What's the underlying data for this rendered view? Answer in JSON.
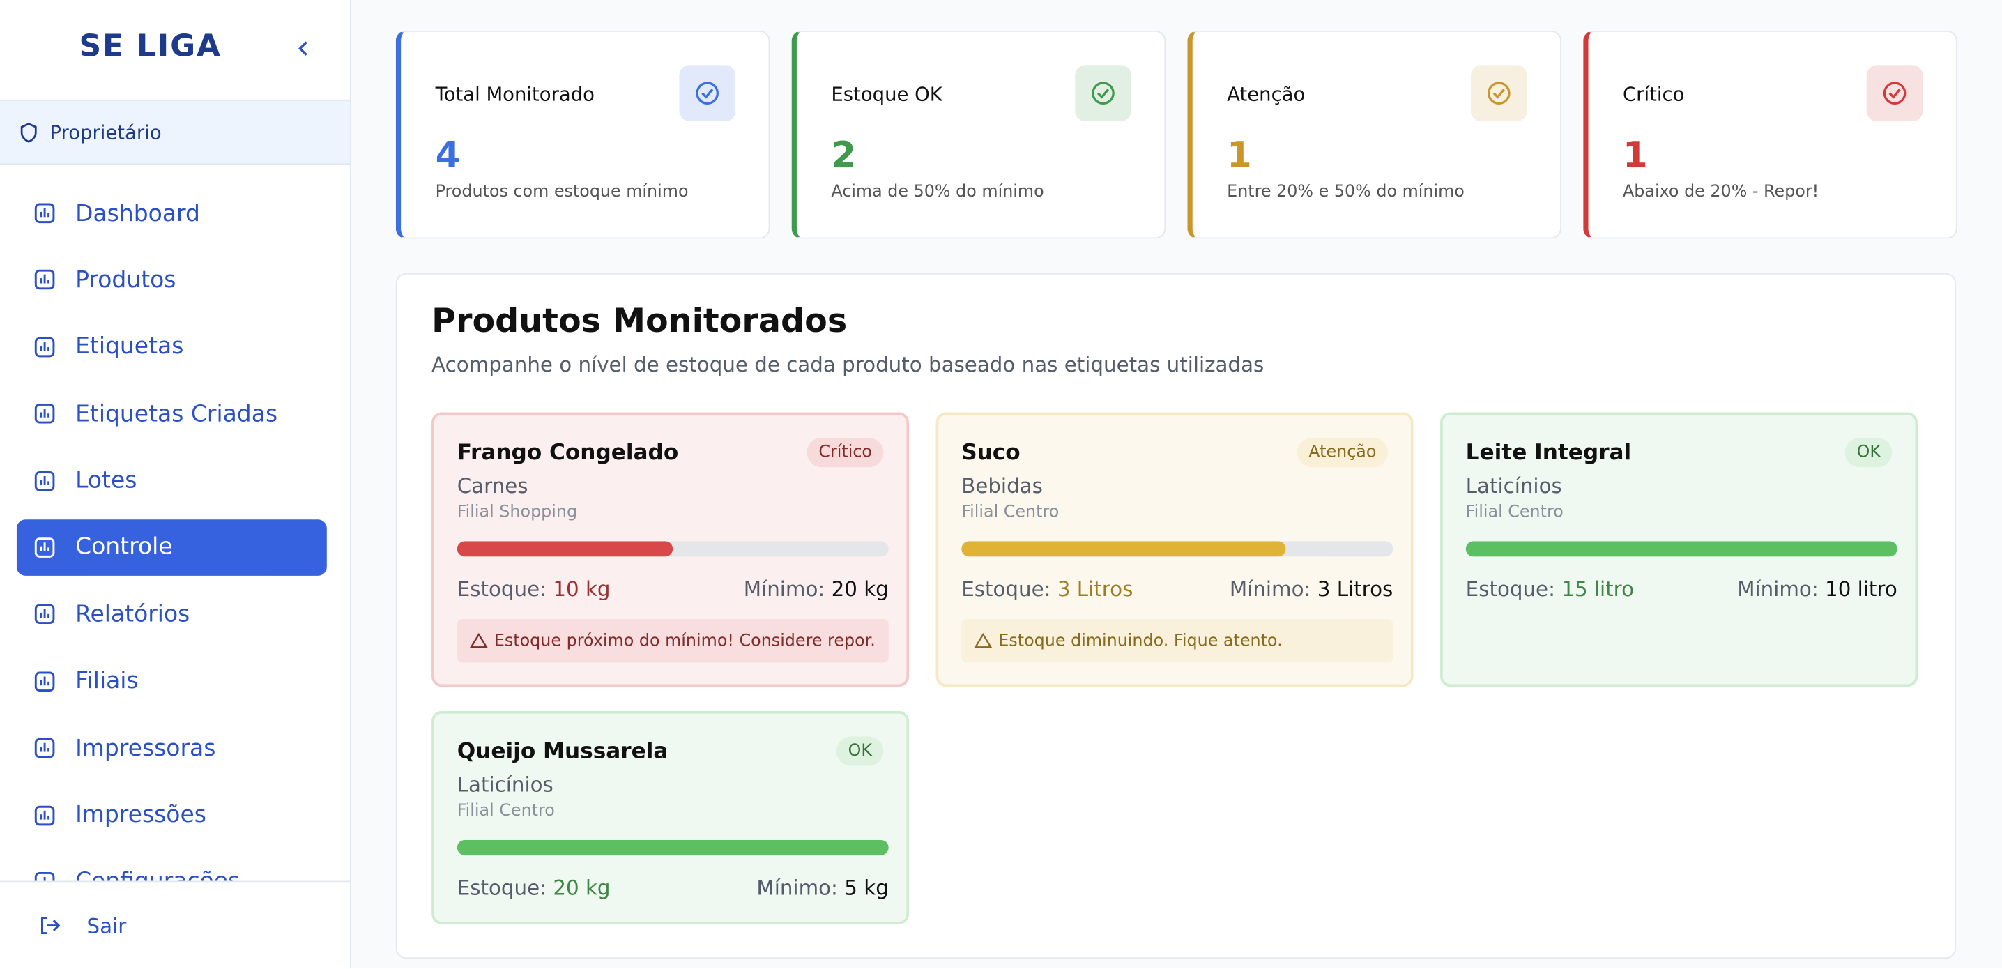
{
  "sidebar": {
    "brand": "SE LIGA",
    "role": "Proprietário",
    "nav": [
      "Dashboard",
      "Produtos",
      "Etiquetas",
      "Etiquetas Criadas",
      "Lotes",
      "Controle",
      "Relatórios",
      "Filiais",
      "Impressoras",
      "Impressões",
      "Configurações"
    ],
    "active": 5,
    "logout": "Sair"
  },
  "stats": [
    {
      "title": "Total Monitorado",
      "value": 4,
      "description": "Produtos com estoque mínimo",
      "color": "#3b6fe0"
    },
    {
      "title": "Estoque OK",
      "value": 2,
      "description": "Acima de 50% do mínimo",
      "color": "#3f9a4b"
    },
    {
      "title": "Atenção",
      "value": 1,
      "description": "Entre 20% e 50% do mínimo",
      "color": "#c9952c"
    },
    {
      "title": "Crítico",
      "value": 1,
      "description": "Abaixo de 20% - Repor!",
      "color": "#d23a3a"
    }
  ],
  "section": {
    "title": "Produtos Monitorados",
    "subtitle": "Acompanhe o nível de estoque de cada produto baseado nas etiquetas utilizadas"
  },
  "labels": {
    "stock": "Estoque:",
    "minimum": "Mínimo:"
  },
  "products": [
    {
      "name": "Frango Congelado",
      "category": "Carnes",
      "branch": "Filial Shopping",
      "status": "Crítico",
      "stock": "10 kg",
      "minimum": "20 kg",
      "progress": 50,
      "message": "Estoque próximo do mínimo! Considere repor.",
      "color": "#d94848"
    },
    {
      "name": "Suco",
      "category": "Bebidas",
      "branch": "Filial Centro",
      "status": "Atenção",
      "stock": "3 Litros",
      "minimum": "3 Litros",
      "progress": 75,
      "message": "Estoque diminuindo. Fique atento.",
      "color": "#e0b236"
    },
    {
      "name": "Leite Integral",
      "category": "Laticínios",
      "branch": "Filial Centro",
      "status": "OK",
      "stock": "15 litro",
      "minimum": "10 litro",
      "progress": 100,
      "color": "#5cbf62"
    },
    {
      "name": "Queijo Mussarela",
      "category": "Laticínios",
      "branch": "Filial Centro",
      "status": "OK",
      "stock": "20 kg",
      "minimum": "5 kg",
      "progress": 100,
      "color": "#5cbf62"
    }
  ]
}
